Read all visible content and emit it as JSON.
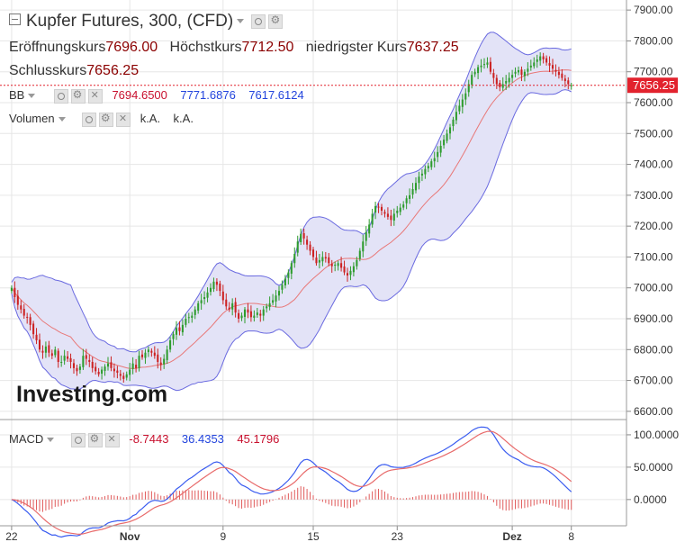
{
  "header": {
    "title": "Kupfer Futures, 300, (CFD)",
    "open_label": "Eröffnungskurs",
    "open_value": "7696.00",
    "high_label": "Höchstkurs",
    "high_value": "7712.50",
    "low_label": "niedrigster Kurs",
    "low_value": "7637.25",
    "close_label": "Schlusskurs",
    "close_value": "7656.25"
  },
  "indicators": {
    "bb": {
      "name": "BB",
      "mid": "7694.6500",
      "upper": "7771.6876",
      "lower": "7617.6124"
    },
    "volume": {
      "name": "Volumen",
      "v1": "k.A.",
      "v2": "k.A."
    },
    "macd": {
      "name": "MACD",
      "hist": "-8.7443",
      "macd": "36.4353",
      "signal": "45.1796"
    }
  },
  "watermark": "Investing.com",
  "current_price_label": "7656.25",
  "colors": {
    "up": "#2e9c2e",
    "down": "#cc2222",
    "bb_fill": "#e3e3f7",
    "bb_band": "#6a6ae0",
    "bb_mid": "#e87878",
    "macd": "#3a5cf0",
    "signal": "#e86a6a",
    "price_tag": "#e2222d",
    "grid": "#e6e6e6"
  },
  "chart_data": [
    {
      "type": "candlestick",
      "title": "Kupfer Futures, 300, (CFD)",
      "y_axis": {
        "ticks": [
          6600,
          6700,
          6800,
          6900,
          7000,
          7100,
          7200,
          7300,
          7400,
          7500,
          7600,
          7700,
          7800,
          7900
        ],
        "tick_labels": [
          "6600.00",
          "6700.00",
          "6800.00",
          "6900.00",
          "7000.00",
          "7100.00",
          "7200.00",
          "7300.00",
          "7400.00",
          "7500.00",
          "7600.00",
          "7700.00",
          "7800.00",
          "7900.00"
        ],
        "range": [
          6585,
          7915
        ]
      },
      "x_axis": {
        "ticks": [
          0,
          38,
          68,
          97,
          124,
          161,
          180
        ],
        "tick_labels": [
          "22",
          "Nov",
          "9",
          "15",
          "23",
          "Dez",
          "8"
        ],
        "range": [
          -2,
          196
        ]
      },
      "current_price": 7656.25,
      "closes": [
        7000,
        6970,
        6945,
        6930,
        6910,
        6905,
        6880,
        6850,
        6830,
        6800,
        6790,
        6810,
        6790,
        6780,
        6800,
        6760,
        6760,
        6780,
        6770,
        6760,
        6740,
        6730,
        6745,
        6780,
        6770,
        6760,
        6740,
        6730,
        6720,
        6735,
        6745,
        6755,
        6740,
        6730,
        6725,
        6715,
        6705,
        6720,
        6735,
        6755,
        6740,
        6780,
        6775,
        6790,
        6800,
        6790,
        6780,
        6760,
        6750,
        6770,
        6800,
        6830,
        6850,
        6870,
        6860,
        6880,
        6900,
        6905,
        6910,
        6930,
        6950,
        6960,
        6970,
        6985,
        7000,
        7020,
        7010,
        6990,
        6960,
        6940,
        6930,
        6950,
        6920,
        6900,
        6910,
        6930,
        6920,
        6905,
        6910,
        6920,
        6910,
        6930,
        6940,
        6950,
        6960,
        6975,
        6990,
        7010,
        7030,
        7050,
        7080,
        7110,
        7150,
        7175,
        7160,
        7140,
        7120,
        7100,
        7080,
        7090,
        7100,
        7095,
        7080,
        7070,
        7075,
        7080,
        7065,
        7050,
        7040,
        7055,
        7070,
        7090,
        7120,
        7150,
        7180,
        7205,
        7240,
        7265,
        7260,
        7250,
        7240,
        7230,
        7220,
        7240,
        7250,
        7260,
        7270,
        7290,
        7300,
        7320,
        7340,
        7360,
        7370,
        7385,
        7395,
        7410,
        7420,
        7440,
        7460,
        7480,
        7500,
        7520,
        7545,
        7570,
        7590,
        7610,
        7630,
        7660,
        7690,
        7700,
        7715,
        7720,
        7725,
        7730,
        7700,
        7680,
        7660,
        7650,
        7660,
        7670,
        7680,
        7690,
        7700,
        7705,
        7690,
        7700,
        7710,
        7720,
        7730,
        7740,
        7750,
        7740,
        7730,
        7720,
        7710,
        7700,
        7690,
        7680,
        7670,
        7660,
        7656.25
      ],
      "bollinger": {
        "period": 20,
        "stddev": 2,
        "last_mid": 7694.65,
        "last_upper": 7771.6876,
        "last_lower": 7617.6124
      },
      "volume": {
        "values": [
          "k.A.",
          "k.A."
        ]
      }
    },
    {
      "type": "line",
      "title": "MACD",
      "y_axis": {
        "ticks": [
          0,
          50,
          100
        ],
        "tick_labels": [
          "0.0000",
          "50.0000",
          "100.0000"
        ],
        "range": [
          -35,
          118
        ]
      },
      "last": {
        "histogram": -8.7443,
        "macd": 36.4353,
        "signal": 45.1796
      }
    }
  ]
}
